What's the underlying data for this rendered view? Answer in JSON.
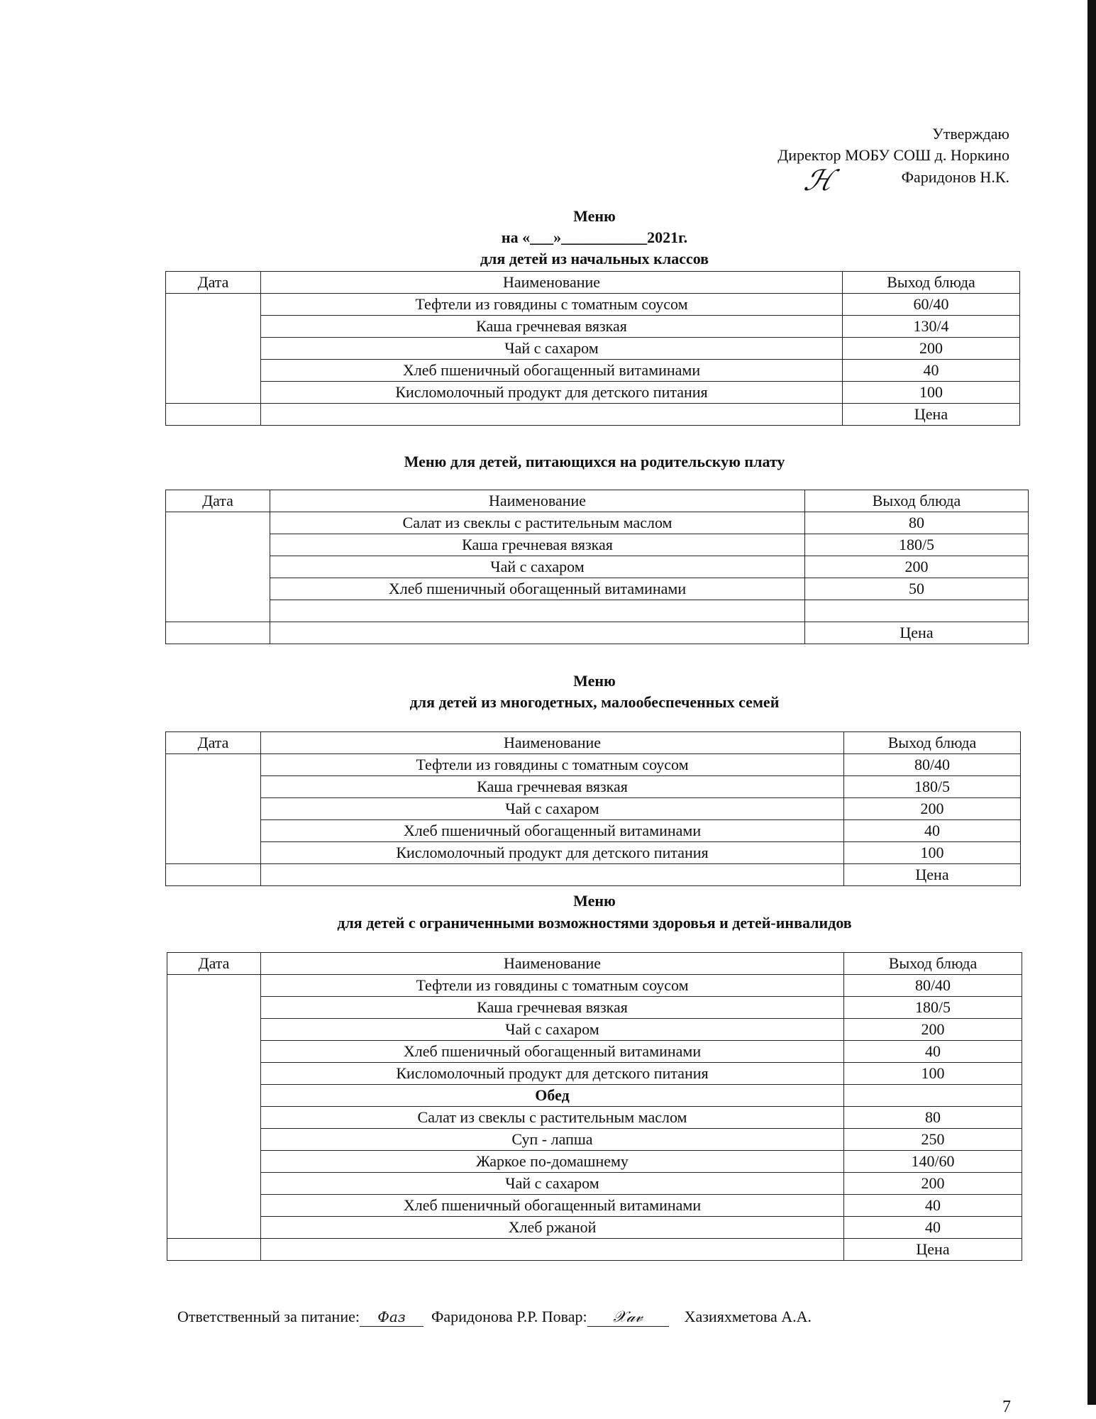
{
  "approval": {
    "line1": "Утверждаю",
    "line2": "Директор МОБУ СОШ д. Норкино",
    "line3": "Фаридонов Н.К.",
    "signature": "Ж"
  },
  "headings": {
    "menu1_title": "Меню",
    "menu1_date": "на «___»___________2021г.",
    "menu1_subtitle": "для детей из начальных классов",
    "menu2_title": "Меню для детей, питающихся на родительскую плату",
    "menu3_title": "Меню",
    "menu3_subtitle": "для детей из многодетных, малообеспеченных семей",
    "menu4_title": "Меню",
    "menu4_subtitle": "для детей с ограниченными возможностями здоровья и детей-инвалидов"
  },
  "tables": [
    {
      "headers": [
        "Дата",
        "Наименование",
        "Выход блюда"
      ],
      "rows": [
        [
          "Тефтели из говядины с томатным соусом",
          "60/40"
        ],
        [
          "Каша гречневая вязкая",
          "130/4"
        ],
        [
          "Чай с сахаром",
          "200"
        ],
        [
          "Хлеб пшеничный обогащенный витаминами",
          "40"
        ],
        [
          "Кисломолочный продукт для детского питания",
          "100"
        ],
        [
          "",
          "Цена"
        ]
      ]
    },
    {
      "headers": [
        "Дата",
        "Наименование",
        "Выход блюда"
      ],
      "rows": [
        [
          "Салат из свеклы с растительным маслом",
          "80"
        ],
        [
          "Каша гречневая вязкая",
          "180/5"
        ],
        [
          "Чай с сахаром",
          "200"
        ],
        [
          "Хлеб пшеничный обогащенный витаминами",
          "50"
        ],
        [
          "",
          ""
        ],
        [
          "",
          "Цена"
        ]
      ]
    },
    {
      "headers": [
        "Дата",
        "Наименование",
        "Выход блюда"
      ],
      "rows": [
        [
          "Тефтели из говядины с томатным соусом",
          "80/40"
        ],
        [
          "Каша гречневая вязкая",
          "180/5"
        ],
        [
          "Чай с сахаром",
          "200"
        ],
        [
          "Хлеб пшеничный обогащенный витаминами",
          "40"
        ],
        [
          "Кисломолочный продукт для детского питания",
          "100"
        ],
        [
          "",
          "Цена"
        ]
      ]
    },
    {
      "headers": [
        "Дата",
        "Наименование",
        "Выход блюда"
      ],
      "rows": [
        [
          "Тефтели из говядины с томатным соусом",
          "80/40"
        ],
        [
          "Каша гречневая вязкая",
          "180/5"
        ],
        [
          "Чай с сахаром",
          "200"
        ],
        [
          "Хлеб пшеничный обогащенный витаминами",
          "40"
        ],
        [
          "Кисломолочный продукт для детского питания",
          "100"
        ],
        [
          "Обед",
          ""
        ],
        [
          "Салат из свеклы с растительным маслом",
          "80"
        ],
        [
          "Суп - лапша",
          "250"
        ],
        [
          "Жаркое по-домашнему",
          "140/60"
        ],
        [
          "Чай с сахаром",
          "200"
        ],
        [
          "Хлеб пшеничный обогащенный витаминами",
          "40"
        ],
        [
          "Хлеб ржаной",
          "40"
        ],
        [
          "",
          "Цена"
        ]
      ]
    }
  ],
  "footer": {
    "responsible_label": "Ответственный за питание:",
    "responsible_signature": "Фаз",
    "responsible_name": "Фаридонова Р.Р.",
    "cook_label": "Повар:",
    "cook_signature": "Хаз",
    "cook_name": "Хазияхметова А.А."
  },
  "page_number": "7"
}
